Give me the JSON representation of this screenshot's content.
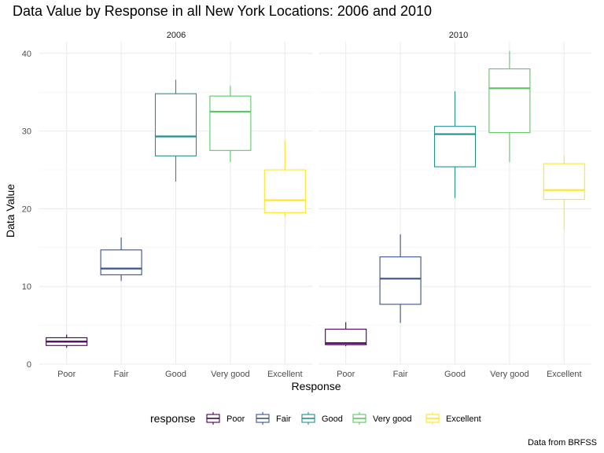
{
  "chart_data": {
    "type": "boxplot",
    "title": "Data Value by Response in all New York Locations: 2006 and 2010",
    "caption": "Data from BRFSS",
    "xlabel": "Response",
    "ylabel": "Data Value",
    "ylim": [
      0,
      41.5
    ],
    "yticks": [
      0,
      10,
      20,
      30,
      40
    ],
    "grid": true,
    "legend": {
      "title": "response",
      "placement": "bottom",
      "entries": [
        "Poor",
        "Fair",
        "Good",
        "Very good",
        "Excellent"
      ]
    },
    "categories": [
      "Poor",
      "Fair",
      "Good",
      "Very good",
      "Excellent"
    ],
    "colors": {
      "Poor": "#440154",
      "Fair": "#3B528B",
      "Good": "#21908C",
      "Very good": "#5DC863",
      "Excellent": "#FDE725"
    },
    "facets": [
      {
        "label": "2006",
        "boxes": [
          {
            "category": "Poor",
            "min": 2.1,
            "q1": 2.4,
            "median": 2.9,
            "q3": 3.4,
            "max": 3.8
          },
          {
            "category": "Fair",
            "min": 10.7,
            "q1": 11.5,
            "median": 12.3,
            "q3": 14.7,
            "max": 16.3
          },
          {
            "category": "Good",
            "min": 23.5,
            "q1": 26.8,
            "median": 29.3,
            "q3": 34.8,
            "max": 36.6
          },
          {
            "category": "Very good",
            "min": 26.0,
            "q1": 27.5,
            "median": 32.5,
            "q3": 34.5,
            "max": 35.8
          },
          {
            "category": "Excellent",
            "min": 19.0,
            "q1": 19.5,
            "median": 21.1,
            "q3": 25.0,
            "max": 28.8
          }
        ]
      },
      {
        "label": "2010",
        "boxes": [
          {
            "category": "Poor",
            "min": 2.3,
            "q1": 2.5,
            "median": 2.7,
            "q3": 4.5,
            "max": 5.4
          },
          {
            "category": "Fair",
            "min": 5.3,
            "q1": 7.7,
            "median": 11.0,
            "q3": 13.8,
            "max": 16.7
          },
          {
            "category": "Good",
            "min": 21.4,
            "q1": 25.4,
            "median": 29.6,
            "q3": 30.6,
            "max": 35.1
          },
          {
            "category": "Very good",
            "min": 26.0,
            "q1": 29.8,
            "median": 35.5,
            "q3": 38.0,
            "max": 40.3
          },
          {
            "category": "Excellent",
            "min": 17.3,
            "q1": 21.2,
            "median": 22.4,
            "q3": 25.8,
            "max": 26.8
          }
        ]
      }
    ]
  }
}
